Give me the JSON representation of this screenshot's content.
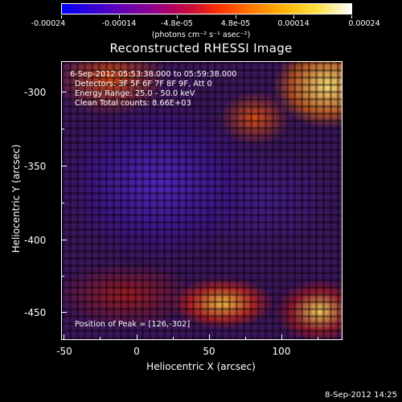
{
  "colorbar": {
    "tick_labels": [
      "-0.00024",
      "-0.00014",
      "-4.8e-05",
      "4.8e-05",
      "0.00014",
      "0.00024"
    ],
    "units": "(photons cm⁻² s⁻¹ asec⁻²)",
    "colors": [
      "#0000ff",
      "#8a0090",
      "#ff3000",
      "#ffb000",
      "#ffffff"
    ]
  },
  "title": "Reconstructed RHESSI Image",
  "info": {
    "time_range": "6-Sep-2012 05:53:38.000 to 05:59:38.000",
    "detectors": "Detectors: 3F 5F 6F 7F 8F 9F, Att 0",
    "energy_range": "Energy Range: 25.0 - 50.0 keV",
    "method_counts": "Clean    Total counts: 8.66E+03"
  },
  "peak": "Position of Peak = [126,-302]",
  "x_axis": {
    "title": "Heliocentric X (arcsec)",
    "ticks": [
      "-50",
      "0",
      "50",
      "100"
    ]
  },
  "y_axis": {
    "title": "Heliocentric Y (arcsec)",
    "ticks": [
      "-300",
      "-350",
      "-400",
      "-450"
    ]
  },
  "footer": {
    "date": "8-Sep-2012 14:25"
  }
}
